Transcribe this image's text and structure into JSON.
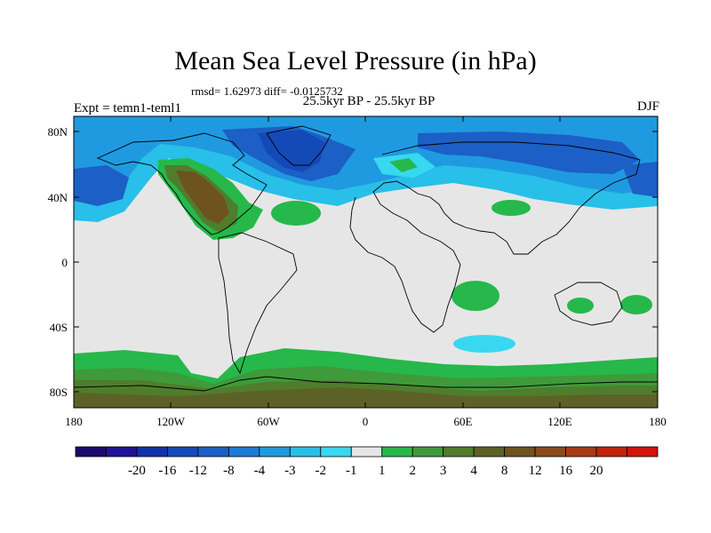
{
  "title": "Mean Sea Level Pressure (in hPa)",
  "stats": "rmsd= 1.62973 diff= -0.0125732",
  "period": "25.5kyr BP - 25.5kyr BP",
  "experiment": "Expt = temn1-teml1",
  "season": "DJF",
  "lat_ticks": [
    "80N",
    "40N",
    "0",
    "40S",
    "80S"
  ],
  "lon_ticks": [
    "180",
    "120W",
    "60W",
    "0",
    "60E",
    "120E",
    "180"
  ],
  "colorbar": {
    "colors": [
      "#1a0a6e",
      "#1f1498",
      "#1232a8",
      "#1449b8",
      "#1c5fc6",
      "#1f7bd6",
      "#1f9ae0",
      "#28bfe8",
      "#38d8f0",
      "#e6e6e6",
      "#26b84a",
      "#3f9a3a",
      "#4f7d2c",
      "#5c6226",
      "#6e5220",
      "#8a4a1c",
      "#a83a14",
      "#c2220c",
      "#d2140a"
    ],
    "labels": [
      "-20",
      "-16",
      "-12",
      "-8",
      "-4",
      "-3",
      "-2",
      "-1",
      "1",
      "2",
      "3",
      "4",
      "8",
      "12",
      "16",
      "20"
    ]
  }
}
